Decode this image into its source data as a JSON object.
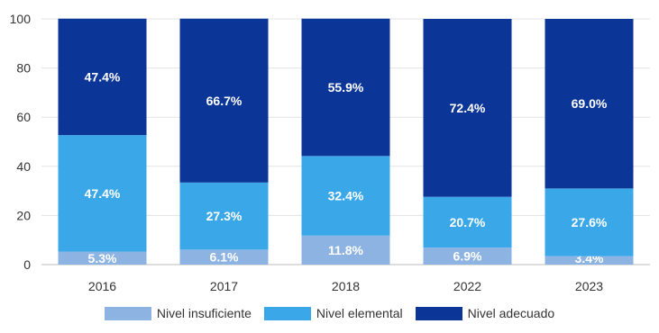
{
  "chart_data": {
    "type": "bar",
    "stacked": true,
    "categories": [
      "2016",
      "2017",
      "2018",
      "2022",
      "2023"
    ],
    "series": [
      {
        "name": "Nivel insuficiente",
        "color": "#8db3e2",
        "values": [
          5.3,
          6.1,
          11.8,
          6.9,
          3.4
        ],
        "labels": [
          "5.3%",
          "6.1%",
          "11.8%",
          "6.9%",
          "3.4%"
        ]
      },
      {
        "name": "Nivel elemental",
        "color": "#3aa8e8",
        "values": [
          47.4,
          27.3,
          32.4,
          20.7,
          27.6
        ],
        "labels": [
          "47.4%",
          "27.3%",
          "32.4%",
          "20.7%",
          "27.6%"
        ]
      },
      {
        "name": "Nivel adecuado",
        "color": "#0b3596",
        "values": [
          47.4,
          66.7,
          55.9,
          72.4,
          69.0
        ],
        "labels": [
          "47.4%",
          "66.7%",
          "55.9%",
          "72.4%",
          "69.0%"
        ]
      }
    ],
    "ylim": [
      0,
      100
    ],
    "yticks": [
      0,
      20,
      40,
      60,
      80,
      100
    ],
    "grid": true,
    "legend": "bottom-center"
  }
}
